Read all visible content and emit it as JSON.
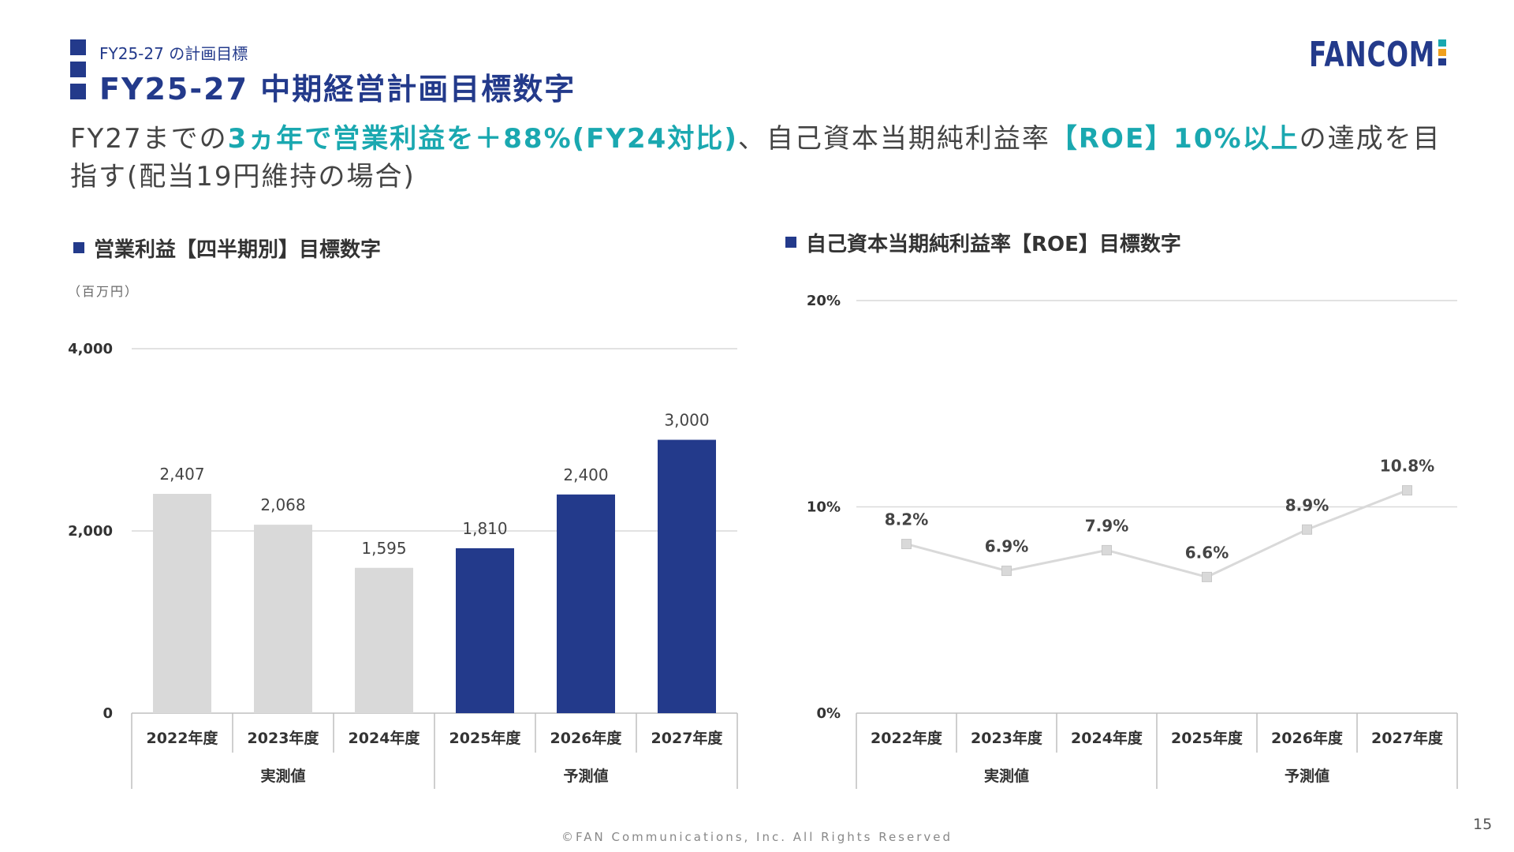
{
  "header": {
    "subtitle": "FY25-27 の計画目標",
    "title": "FY25-27 中期経営計画目標数字",
    "logo_text": "FANCOM"
  },
  "lead": {
    "part1": "FY27までの",
    "part2": "3ヵ年で営業利益を＋88%(FY24対比)",
    "part3": "、自己資本当期純利益率",
    "part4": "【ROE】10%以上",
    "part5": "の達成を目指す(配当19円維持の場合)"
  },
  "colors": {
    "navy": "#233a8b",
    "teal": "#1aa8b0",
    "gray_bar": "#d9d9d9",
    "line": "#d9d9d9"
  },
  "chart_data": [
    {
      "type": "bar",
      "title": "営業利益【四半期別】目標数字",
      "unit_label": "（百万円）",
      "categories": [
        "2022年度",
        "2023年度",
        "2024年度",
        "2025年度",
        "2026年度",
        "2027年度"
      ],
      "values": [
        2407,
        2068,
        1595,
        1810,
        2400,
        3000
      ],
      "value_labels": [
        "2,407",
        "2,068",
        "1,595",
        "1,810",
        "2,400",
        "3,000"
      ],
      "y_ticks": [
        "0",
        "2,000",
        "4,000"
      ],
      "ylim": [
        0,
        4000
      ],
      "groups": [
        {
          "label": "実測値",
          "span": [
            0,
            2
          ]
        },
        {
          "label": "予測値",
          "span": [
            3,
            5
          ]
        }
      ],
      "bar_colors": [
        "#d9d9d9",
        "#d9d9d9",
        "#d9d9d9",
        "#233a8b",
        "#233a8b",
        "#233a8b"
      ],
      "grid": true
    },
    {
      "type": "line",
      "title": "自己資本当期純利益率【ROE】目標数字",
      "categories": [
        "2022年度",
        "2023年度",
        "2024年度",
        "2025年度",
        "2026年度",
        "2027年度"
      ],
      "values": [
        8.2,
        6.9,
        7.9,
        6.6,
        8.9,
        10.8
      ],
      "value_labels": [
        "8.2%",
        "6.9%",
        "7.9%",
        "6.6%",
        "8.9%",
        "10.8%"
      ],
      "y_ticks": [
        "0%",
        "10%",
        "20%"
      ],
      "ylim": [
        0,
        20
      ],
      "groups": [
        {
          "label": "実測値",
          "span": [
            0,
            2
          ]
        },
        {
          "label": "予測値",
          "span": [
            3,
            5
          ]
        }
      ],
      "grid": true
    }
  ],
  "footer": {
    "copyright": "©FAN Communications, Inc. All Rights Reserved",
    "page_number": "15"
  }
}
